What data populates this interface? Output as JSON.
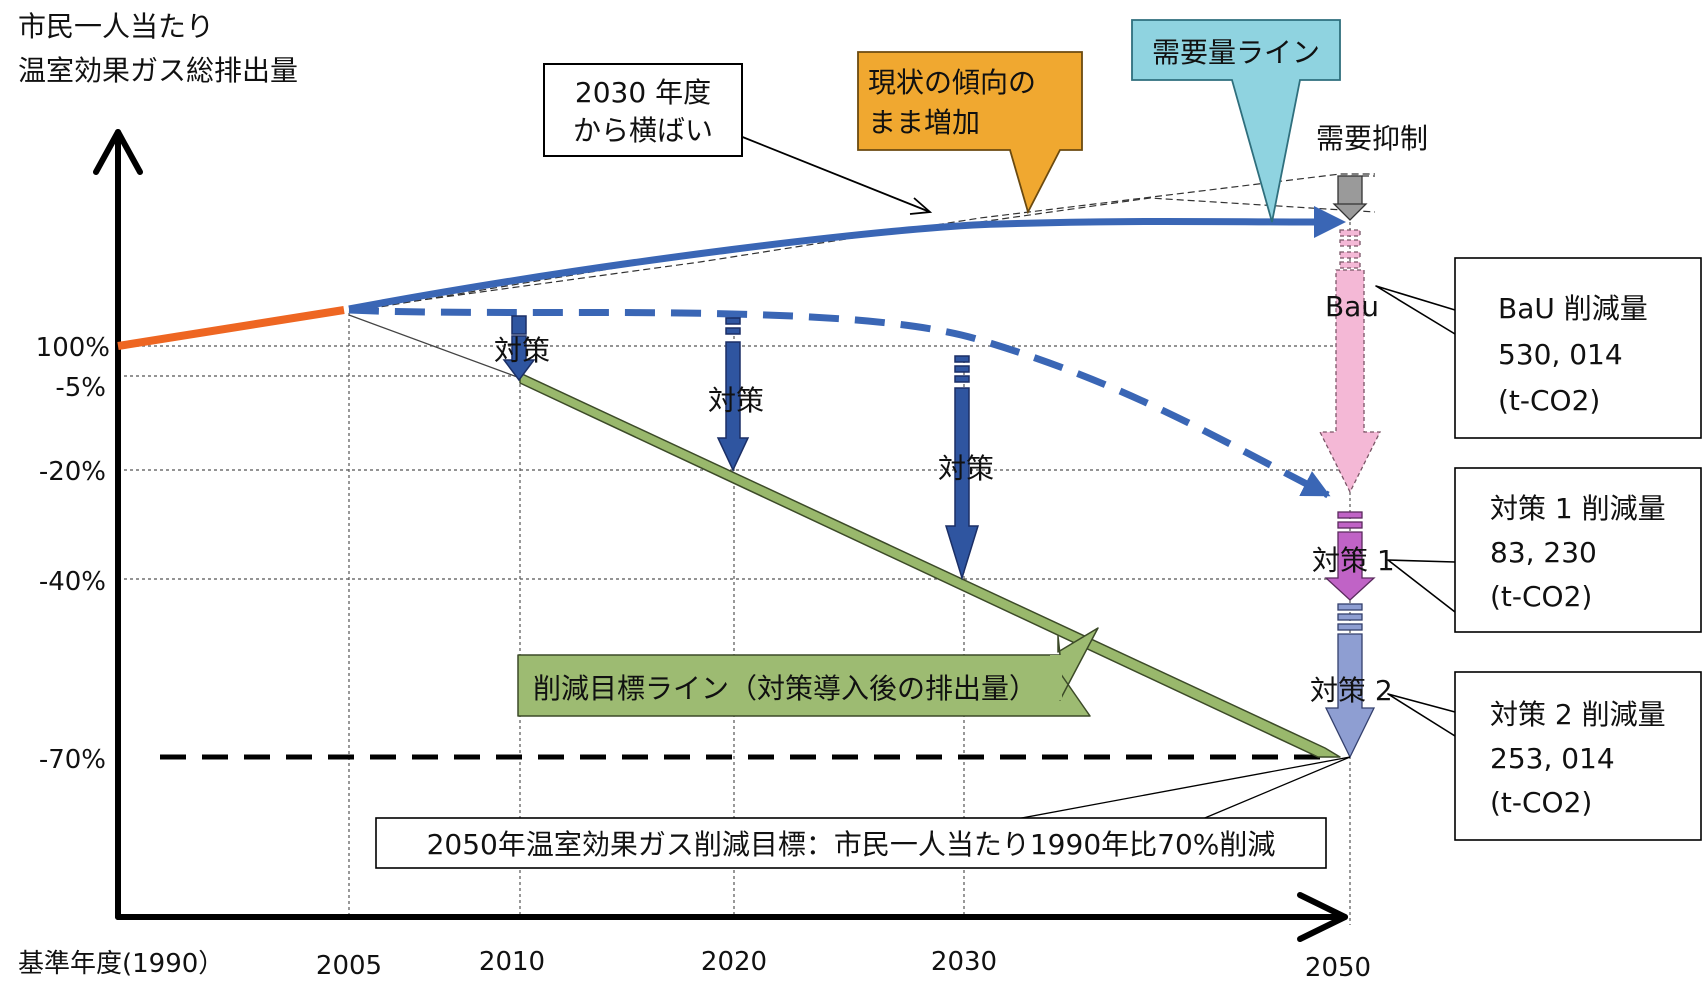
{
  "y_axis_title": [
    "市民一人当たり",
    "温室効果ガス総排出量"
  ],
  "y_ticks": [
    "100%",
    "-5%",
    "-20%",
    "-40%",
    "-70%"
  ],
  "x_ticks": [
    "基準年度(1990）",
    "2005",
    "2010",
    "2020",
    "2030",
    "2050"
  ],
  "callouts": {
    "flat": [
      "2030 年度",
      "から横ばい"
    ],
    "trend": [
      "現状の傾向の",
      "まま増加"
    ],
    "demand": "需要量ライン",
    "target_line": "削減目標ライン（対策導入後の排出量）",
    "goal": "2050年温室効果ガス削減目標：市民一人当たり1990年比70%削減"
  },
  "inline_labels": {
    "demand_suppression": "需要抑制",
    "measure": "対策",
    "bau": "Bau",
    "measure1": "対策 1",
    "measure2": "対策 2"
  },
  "reduction_boxes": [
    {
      "title": "BaU 削減量",
      "value": "530, 014",
      "unit": "(t-CO2)"
    },
    {
      "title": "対策 1 削減量",
      "value": "83, 230",
      "unit": "(t-CO2)"
    },
    {
      "title": "対策 2 削減量",
      "value": "253, 014",
      "unit": "(t-CO2)"
    }
  ],
  "colors": {
    "history": "#ee6622",
    "demand_line": "#3a66b5",
    "target_line": "#99b86c",
    "target_callout": "#9dbb72",
    "trend_callout": "#f0a830",
    "demand_callout": "#8fd3e0",
    "measure_arrow": "#2f55a0",
    "bau_arrow": "#f4b8d6",
    "measure1_arrow": "#c063c6",
    "measure2_arrow": "#8e9ed2",
    "suppression": "#9a9a9a"
  }
}
